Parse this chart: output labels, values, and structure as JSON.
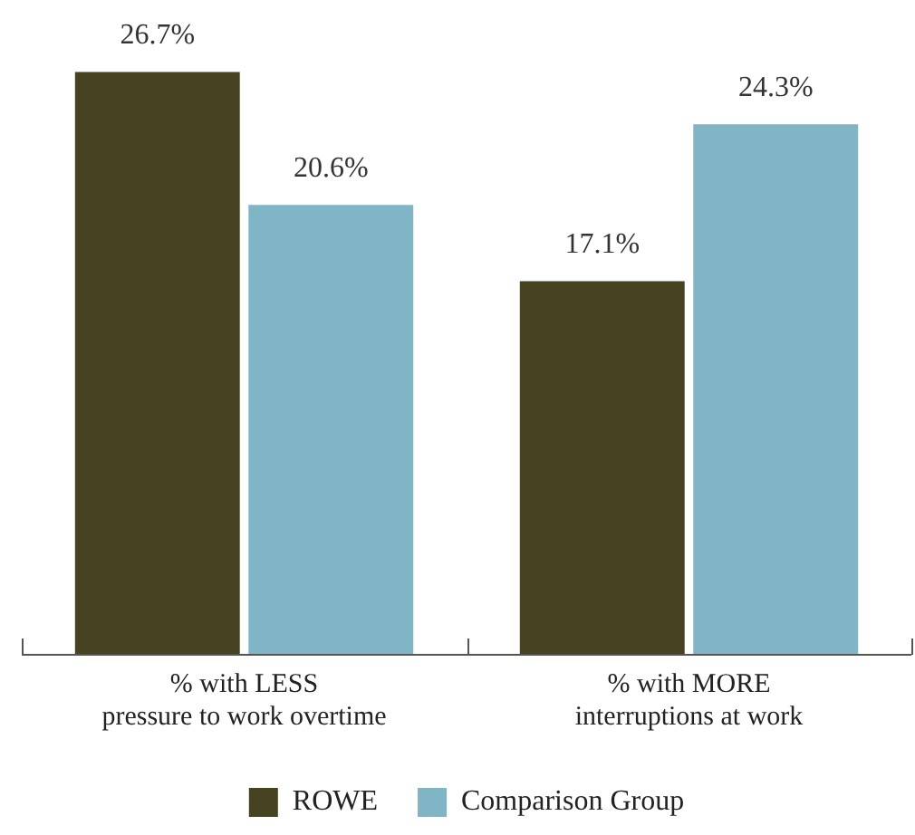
{
  "chart_data": {
    "type": "bar",
    "categories": [
      "% with LESS\npressure to work overtime",
      "% with MORE\ninterruptions at work"
    ],
    "series": [
      {
        "name": "ROWE",
        "color": "#47421f",
        "values": [
          26.7,
          17.1
        ],
        "value_labels": [
          "26.7%",
          "17.1%"
        ]
      },
      {
        "name": "Comparison Group",
        "color": "#7fb5c5",
        "values": [
          20.6,
          24.3
        ],
        "value_labels": [
          "20.6%",
          "24.3%"
        ]
      }
    ],
    "legend": "bottom",
    "grid": false
  }
}
